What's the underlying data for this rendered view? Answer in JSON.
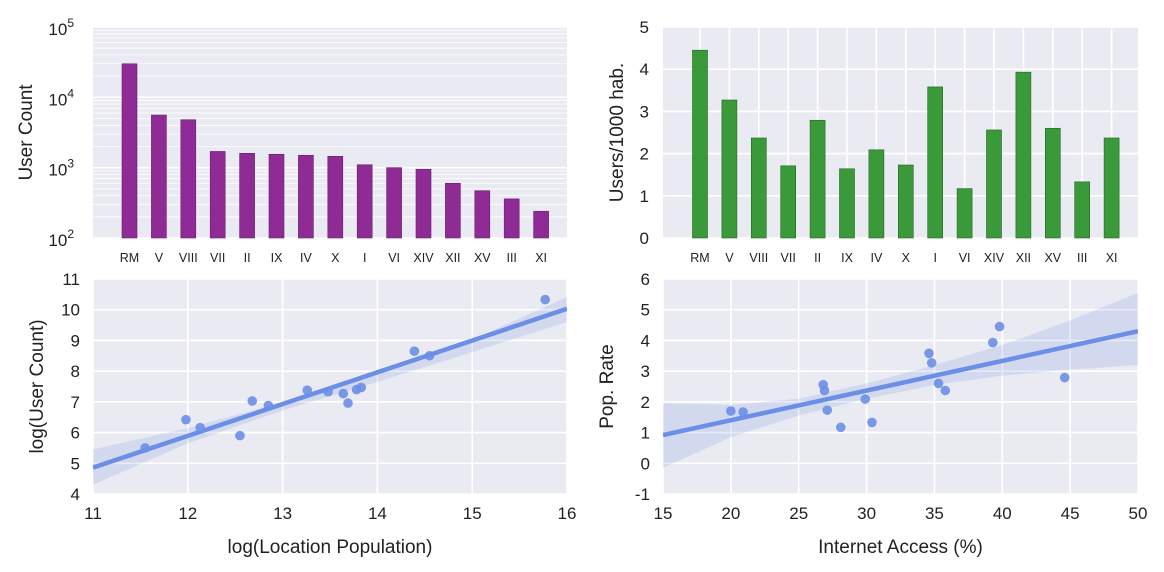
{
  "chart_data": [
    {
      "type": "bar",
      "ylabel": "User Count",
      "yscale": "log",
      "ylim": [
        100,
        100000
      ],
      "ytick_labels": [
        {
          "base": "10",
          "exp": "2"
        },
        {
          "base": "10",
          "exp": "3"
        },
        {
          "base": "10",
          "exp": "4"
        },
        {
          "base": "10",
          "exp": "5"
        }
      ],
      "categories": [
        "RM",
        "V",
        "VIII",
        "VII",
        "II",
        "IX",
        "IV",
        "X",
        "I",
        "VI",
        "XIV",
        "XII",
        "XV",
        "III",
        "XI"
      ],
      "values": [
        30000,
        5600,
        4800,
        1700,
        1600,
        1550,
        1500,
        1450,
        1100,
        1000,
        950,
        600,
        470,
        360,
        240
      ],
      "bar_color": "#8e2b94",
      "grid": "major and minor, y-axis"
    },
    {
      "type": "bar",
      "ylabel": "Users/1000 hab.",
      "ylim": [
        0,
        5
      ],
      "yticks": [
        0,
        1,
        2,
        3,
        4,
        5
      ],
      "categories": [
        "RM",
        "V",
        "VIII",
        "VII",
        "II",
        "IX",
        "IV",
        "X",
        "I",
        "VI",
        "XIV",
        "XII",
        "XV",
        "III",
        "XI"
      ],
      "values": [
        4.45,
        3.27,
        2.37,
        1.71,
        2.79,
        1.64,
        2.09,
        1.73,
        3.58,
        1.17,
        2.56,
        3.93,
        2.6,
        1.33,
        2.37
      ],
      "bar_color": "#3a9a3a",
      "grid": "on"
    },
    {
      "type": "scatter",
      "xlabel": "log(Location Population)",
      "ylabel": "log(User Count)",
      "xlim": [
        11,
        16
      ],
      "ylim": [
        4,
        11
      ],
      "xticks": [
        11,
        12,
        13,
        14,
        15,
        16
      ],
      "yticks": [
        4,
        5,
        6,
        7,
        8,
        9,
        10,
        11
      ],
      "points": [
        [
          11.55,
          5.5
        ],
        [
          11.98,
          6.42
        ],
        [
          12.13,
          6.16
        ],
        [
          12.55,
          5.9
        ],
        [
          12.68,
          7.03
        ],
        [
          12.85,
          6.88
        ],
        [
          13.26,
          7.38
        ],
        [
          13.48,
          7.33
        ],
        [
          13.64,
          7.27
        ],
        [
          13.69,
          6.96
        ],
        [
          13.78,
          7.4
        ],
        [
          13.83,
          7.47
        ],
        [
          14.39,
          8.65
        ],
        [
          14.55,
          8.5
        ],
        [
          15.77,
          10.33
        ]
      ],
      "fit_line": {
        "x": [
          11,
          16
        ],
        "y": [
          4.86,
          10.03
        ]
      },
      "ci_band": {
        "x": [
          11,
          12,
          13,
          14,
          15,
          16
        ],
        "upper": [
          5.45,
          6.15,
          6.98,
          7.95,
          9.02,
          10.42
        ],
        "lower": [
          4.3,
          5.65,
          6.72,
          7.65,
          8.62,
          9.6
        ]
      },
      "color": "#6b8ee6",
      "grid": "on"
    },
    {
      "type": "scatter",
      "xlabel": "Internet Access (%)",
      "ylabel": "Pop. Rate",
      "xlim": [
        15,
        50
      ],
      "ylim": [
        -1,
        6
      ],
      "xticks": [
        15,
        20,
        25,
        30,
        35,
        40,
        45,
        50
      ],
      "yticks": [
        -1,
        0,
        1,
        2,
        3,
        4,
        5,
        6
      ],
      "points": [
        [
          20.0,
          1.7
        ],
        [
          20.9,
          1.67
        ],
        [
          26.8,
          2.56
        ],
        [
          26.9,
          2.37
        ],
        [
          27.1,
          1.73
        ],
        [
          28.1,
          1.17
        ],
        [
          29.9,
          2.09
        ],
        [
          30.4,
          1.33
        ],
        [
          34.6,
          3.58
        ],
        [
          34.8,
          3.27
        ],
        [
          35.3,
          2.6
        ],
        [
          35.8,
          2.37
        ],
        [
          39.3,
          3.93
        ],
        [
          39.8,
          4.45
        ],
        [
          44.6,
          2.79
        ]
      ],
      "fit_line": {
        "x": [
          15,
          50
        ],
        "y": [
          0.92,
          4.3
        ]
      },
      "ci_band": {
        "x": [
          15,
          20,
          25,
          30,
          35,
          40,
          45,
          50
        ],
        "upper": [
          1.95,
          1.9,
          2.1,
          2.6,
          3.2,
          3.85,
          4.65,
          5.55
        ],
        "lower": [
          -0.15,
          0.85,
          1.55,
          2.1,
          2.55,
          2.85,
          3.05,
          3.2
        ]
      },
      "color": "#6b8ee6",
      "grid": "on"
    }
  ]
}
